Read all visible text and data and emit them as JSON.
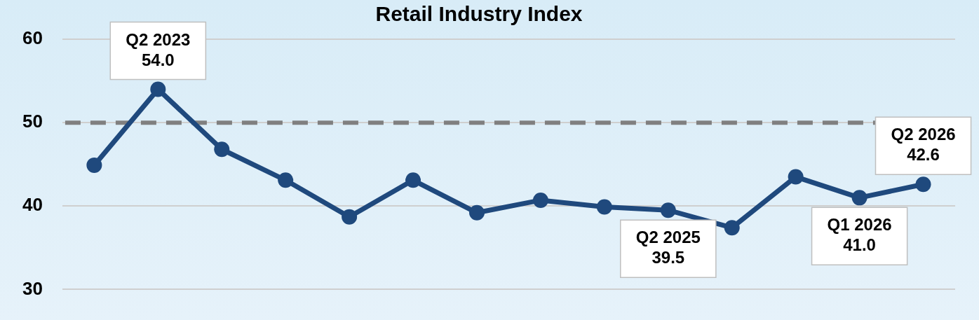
{
  "chart_data": {
    "type": "line",
    "title": "Retail Industry Index",
    "categories": [
      null,
      null,
      null,
      null,
      null,
      null,
      null,
      null,
      null,
      null,
      null,
      null,
      null,
      null
    ],
    "series": [
      {
        "color": "#1f497d",
        "values": [
          44.9,
          54.0,
          46.8,
          43.1,
          38.7,
          43.1,
          39.2,
          40.7,
          39.9,
          39.5,
          37.4,
          43.5,
          41.0,
          42.6
        ],
        "value_labels": [
          null,
          "Q2 2023\n54.0",
          null,
          null,
          null,
          null,
          null,
          null,
          null,
          "Q2 2025\n39.5",
          null,
          null,
          "Q1 2026\n41.0",
          "Q2 2026\n42.6"
        ]
      }
    ],
    "ylim": [
      30,
      60
    ],
    "yticks": [
      30,
      40,
      50,
      60
    ],
    "grid": "y",
    "legend": false,
    "marker": "circle",
    "line_style": "solid",
    "ref_lines": [
      {
        "axis": "y",
        "value": 50,
        "color": "#808080",
        "line_style": "dashed"
      }
    ]
  }
}
